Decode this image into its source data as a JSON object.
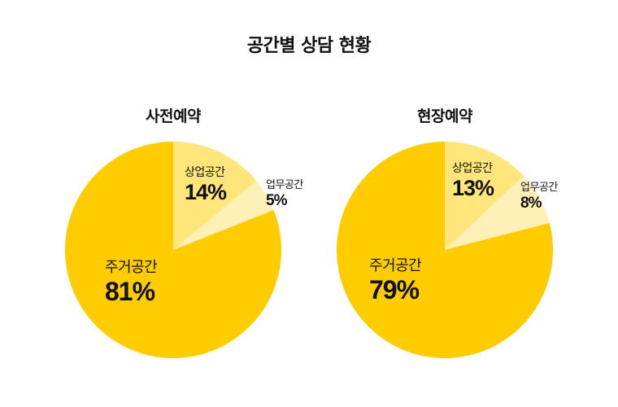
{
  "title": "공간별 상담 현황",
  "colors": {
    "residential": "#FFCC00",
    "commercial": "#FFE57A",
    "office": "#FFF0B8",
    "text": "#111111",
    "background": "#FFFFFF"
  },
  "charts": [
    {
      "title": "사전예약",
      "slices": [
        {
          "label": "상업공간",
          "value": "14%"
        },
        {
          "label": "업무공간",
          "value": "5%"
        },
        {
          "label": "주거공간",
          "value": "81%"
        }
      ]
    },
    {
      "title": "현장예약",
      "slices": [
        {
          "label": "상업공간",
          "value": "13%"
        },
        {
          "label": "업무공간",
          "value": "8%"
        },
        {
          "label": "주거공간",
          "value": "79%"
        }
      ]
    }
  ],
  "chart_data": [
    {
      "type": "pie",
      "title": "사전예약",
      "categories": [
        "상업공간",
        "업무공간",
        "주거공간"
      ],
      "values": [
        14,
        5,
        81
      ],
      "unit": "%",
      "start_angle": "12 o'clock, clockwise",
      "colors": [
        "#FFE57A",
        "#FFF0B8",
        "#FFCC00"
      ]
    },
    {
      "type": "pie",
      "title": "현장예약",
      "categories": [
        "상업공간",
        "업무공간",
        "주거공간"
      ],
      "values": [
        13,
        8,
        79
      ],
      "unit": "%",
      "start_angle": "12 o'clock, clockwise",
      "colors": [
        "#FFE57A",
        "#FFF0B8",
        "#FFCC00"
      ]
    }
  ]
}
